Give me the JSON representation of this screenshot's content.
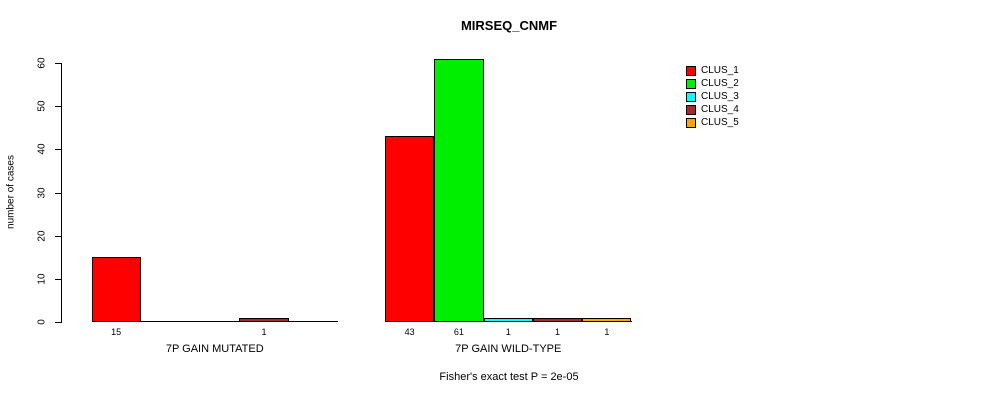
{
  "title": "MIRSEQ_CNMF",
  "subtitle": "Fisher's exact test P = 2e-05",
  "y_axis": {
    "label": "number of cases"
  },
  "legend": {
    "items": [
      {
        "label": "CLUS_1",
        "color": "#FF0000"
      },
      {
        "label": "CLUS_2",
        "color": "#00EE00"
      },
      {
        "label": "CLUS_3",
        "color": "#00FFFF"
      },
      {
        "label": "CLUS_4",
        "color": "#A52A2A"
      },
      {
        "label": "CLUS_5",
        "color": "#FFA500"
      }
    ]
  },
  "chart_data": {
    "type": "bar",
    "title": "MIRSEQ_CNMF",
    "xlabel": "",
    "ylabel": "number of cases",
    "ylim": [
      0,
      60
    ],
    "yticks": [
      0,
      10,
      20,
      30,
      40,
      50,
      60
    ],
    "grid": false,
    "legend_position": "top-right",
    "categories": [
      "CLUS_1",
      "CLUS_2",
      "CLUS_3",
      "CLUS_4",
      "CLUS_5"
    ],
    "colors": [
      "#FF0000",
      "#00EE00",
      "#00FFFF",
      "#A52A2A",
      "#FFA500"
    ],
    "groups": [
      {
        "label": "7P GAIN MUTATED",
        "values": [
          15,
          0,
          0,
          1,
          0
        ],
        "bar_value_labels": [
          "15",
          "",
          "",
          "1",
          ""
        ]
      },
      {
        "label": "7P GAIN WILD-TYPE",
        "values": [
          43,
          61,
          1,
          1,
          1
        ],
        "bar_value_labels": [
          "43",
          "61",
          "1",
          "1",
          "1"
        ]
      }
    ],
    "annotation": "Fisher's exact test P = 2e-05"
  }
}
